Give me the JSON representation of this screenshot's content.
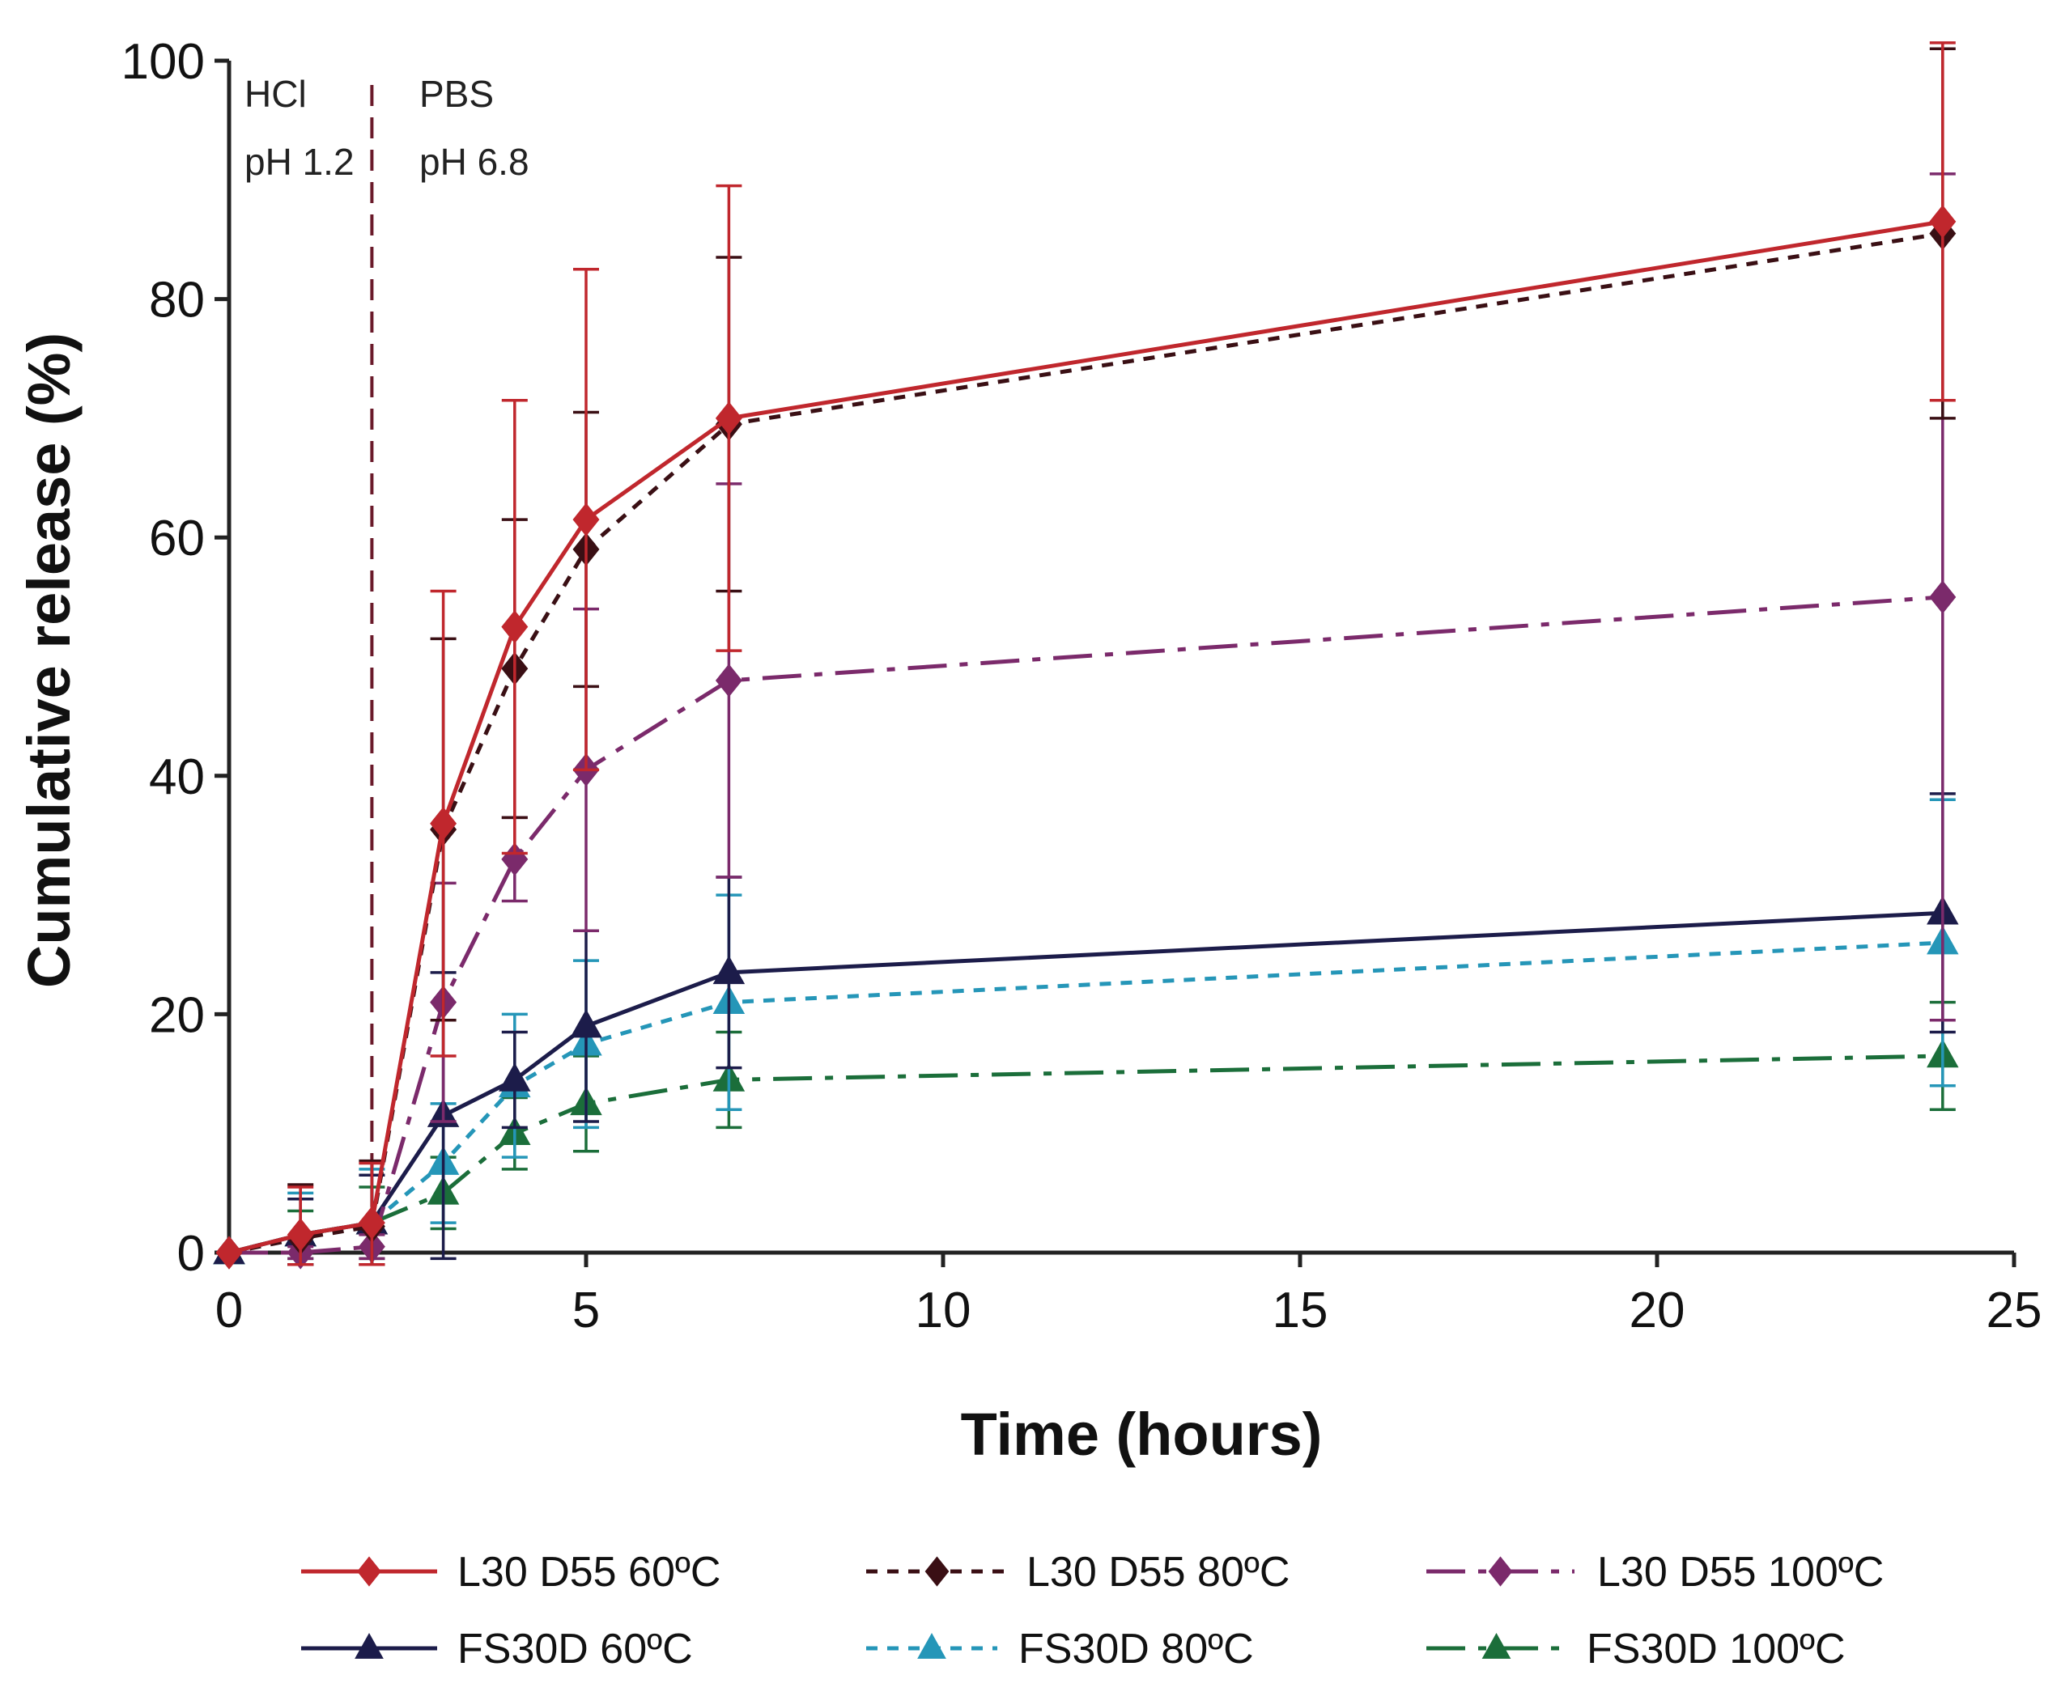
{
  "chart_data": {
    "type": "line",
    "title": "",
    "xlabel": "Time (hours)",
    "ylabel": "Cumulative release (%)",
    "xlim": [
      0,
      25
    ],
    "ylim": [
      0,
      100
    ],
    "xticks": [
      0,
      5,
      10,
      15,
      20,
      25
    ],
    "yticks": [
      0,
      20,
      40,
      60,
      80,
      100
    ],
    "x": [
      0,
      1,
      2,
      3,
      4,
      5,
      7,
      24
    ],
    "phase_divider_x": 2,
    "annotations": [
      {
        "line1": "HCl",
        "line2": "pH 1.2"
      },
      {
        "line1": "PBS",
        "line2": "pH 6.8"
      }
    ],
    "legend_position": "bottom",
    "series": [
      {
        "name": "L30 D55 60ºC",
        "color": "#c0272d",
        "dash": "solid",
        "marker": "diamond",
        "values": [
          0,
          1.5,
          2.5,
          36,
          52.5,
          61.5,
          70,
          86.5
        ],
        "err": [
          0,
          4,
          5,
          19.5,
          19,
          21,
          19.5,
          15
        ]
      },
      {
        "name": "L30 D55 80ºC",
        "color": "#3a0f14",
        "dash": "dotted",
        "marker": "diamond",
        "values": [
          0,
          1.2,
          2.2,
          35.5,
          49,
          59,
          69.5,
          85.5
        ],
        "err": [
          0,
          4.5,
          5.5,
          16,
          12.5,
          11.5,
          14,
          15.5
        ]
      },
      {
        "name": "L30 D55 100ºC",
        "color": "#7b2a6b",
        "dash": "dashdot",
        "marker": "diamond",
        "values": [
          0,
          0,
          0.5,
          21,
          33,
          40.5,
          48,
          55
        ],
        "err": [
          0,
          0.5,
          1,
          10,
          3.5,
          13.5,
          16.5,
          35.5
        ]
      },
      {
        "name": "FS30D 60ºC",
        "color": "#1c1c4a",
        "dash": "solid",
        "marker": "triangle",
        "values": [
          0,
          1.5,
          2.5,
          11.5,
          14.5,
          19,
          23.5,
          28.5
        ],
        "err": [
          0,
          3,
          4,
          12,
          4,
          8,
          8,
          10
        ]
      },
      {
        "name": "FS30D 80ºC",
        "color": "#2596b8",
        "dash": "dotted",
        "marker": "triangle",
        "values": [
          0,
          1.5,
          2.5,
          7.5,
          14,
          17.5,
          21,
          26
        ],
        "err": [
          0,
          3.5,
          4.5,
          5,
          6,
          7,
          9,
          12
        ]
      },
      {
        "name": "FS30D 100ºC",
        "color": "#1b6e3a",
        "dash": "dashdot",
        "marker": "triangle",
        "values": [
          0,
          1.5,
          2.5,
          5,
          10,
          12.5,
          14.5,
          16.5
        ],
        "err": [
          0,
          2,
          3,
          3,
          3,
          4,
          4,
          4.5
        ]
      }
    ]
  }
}
